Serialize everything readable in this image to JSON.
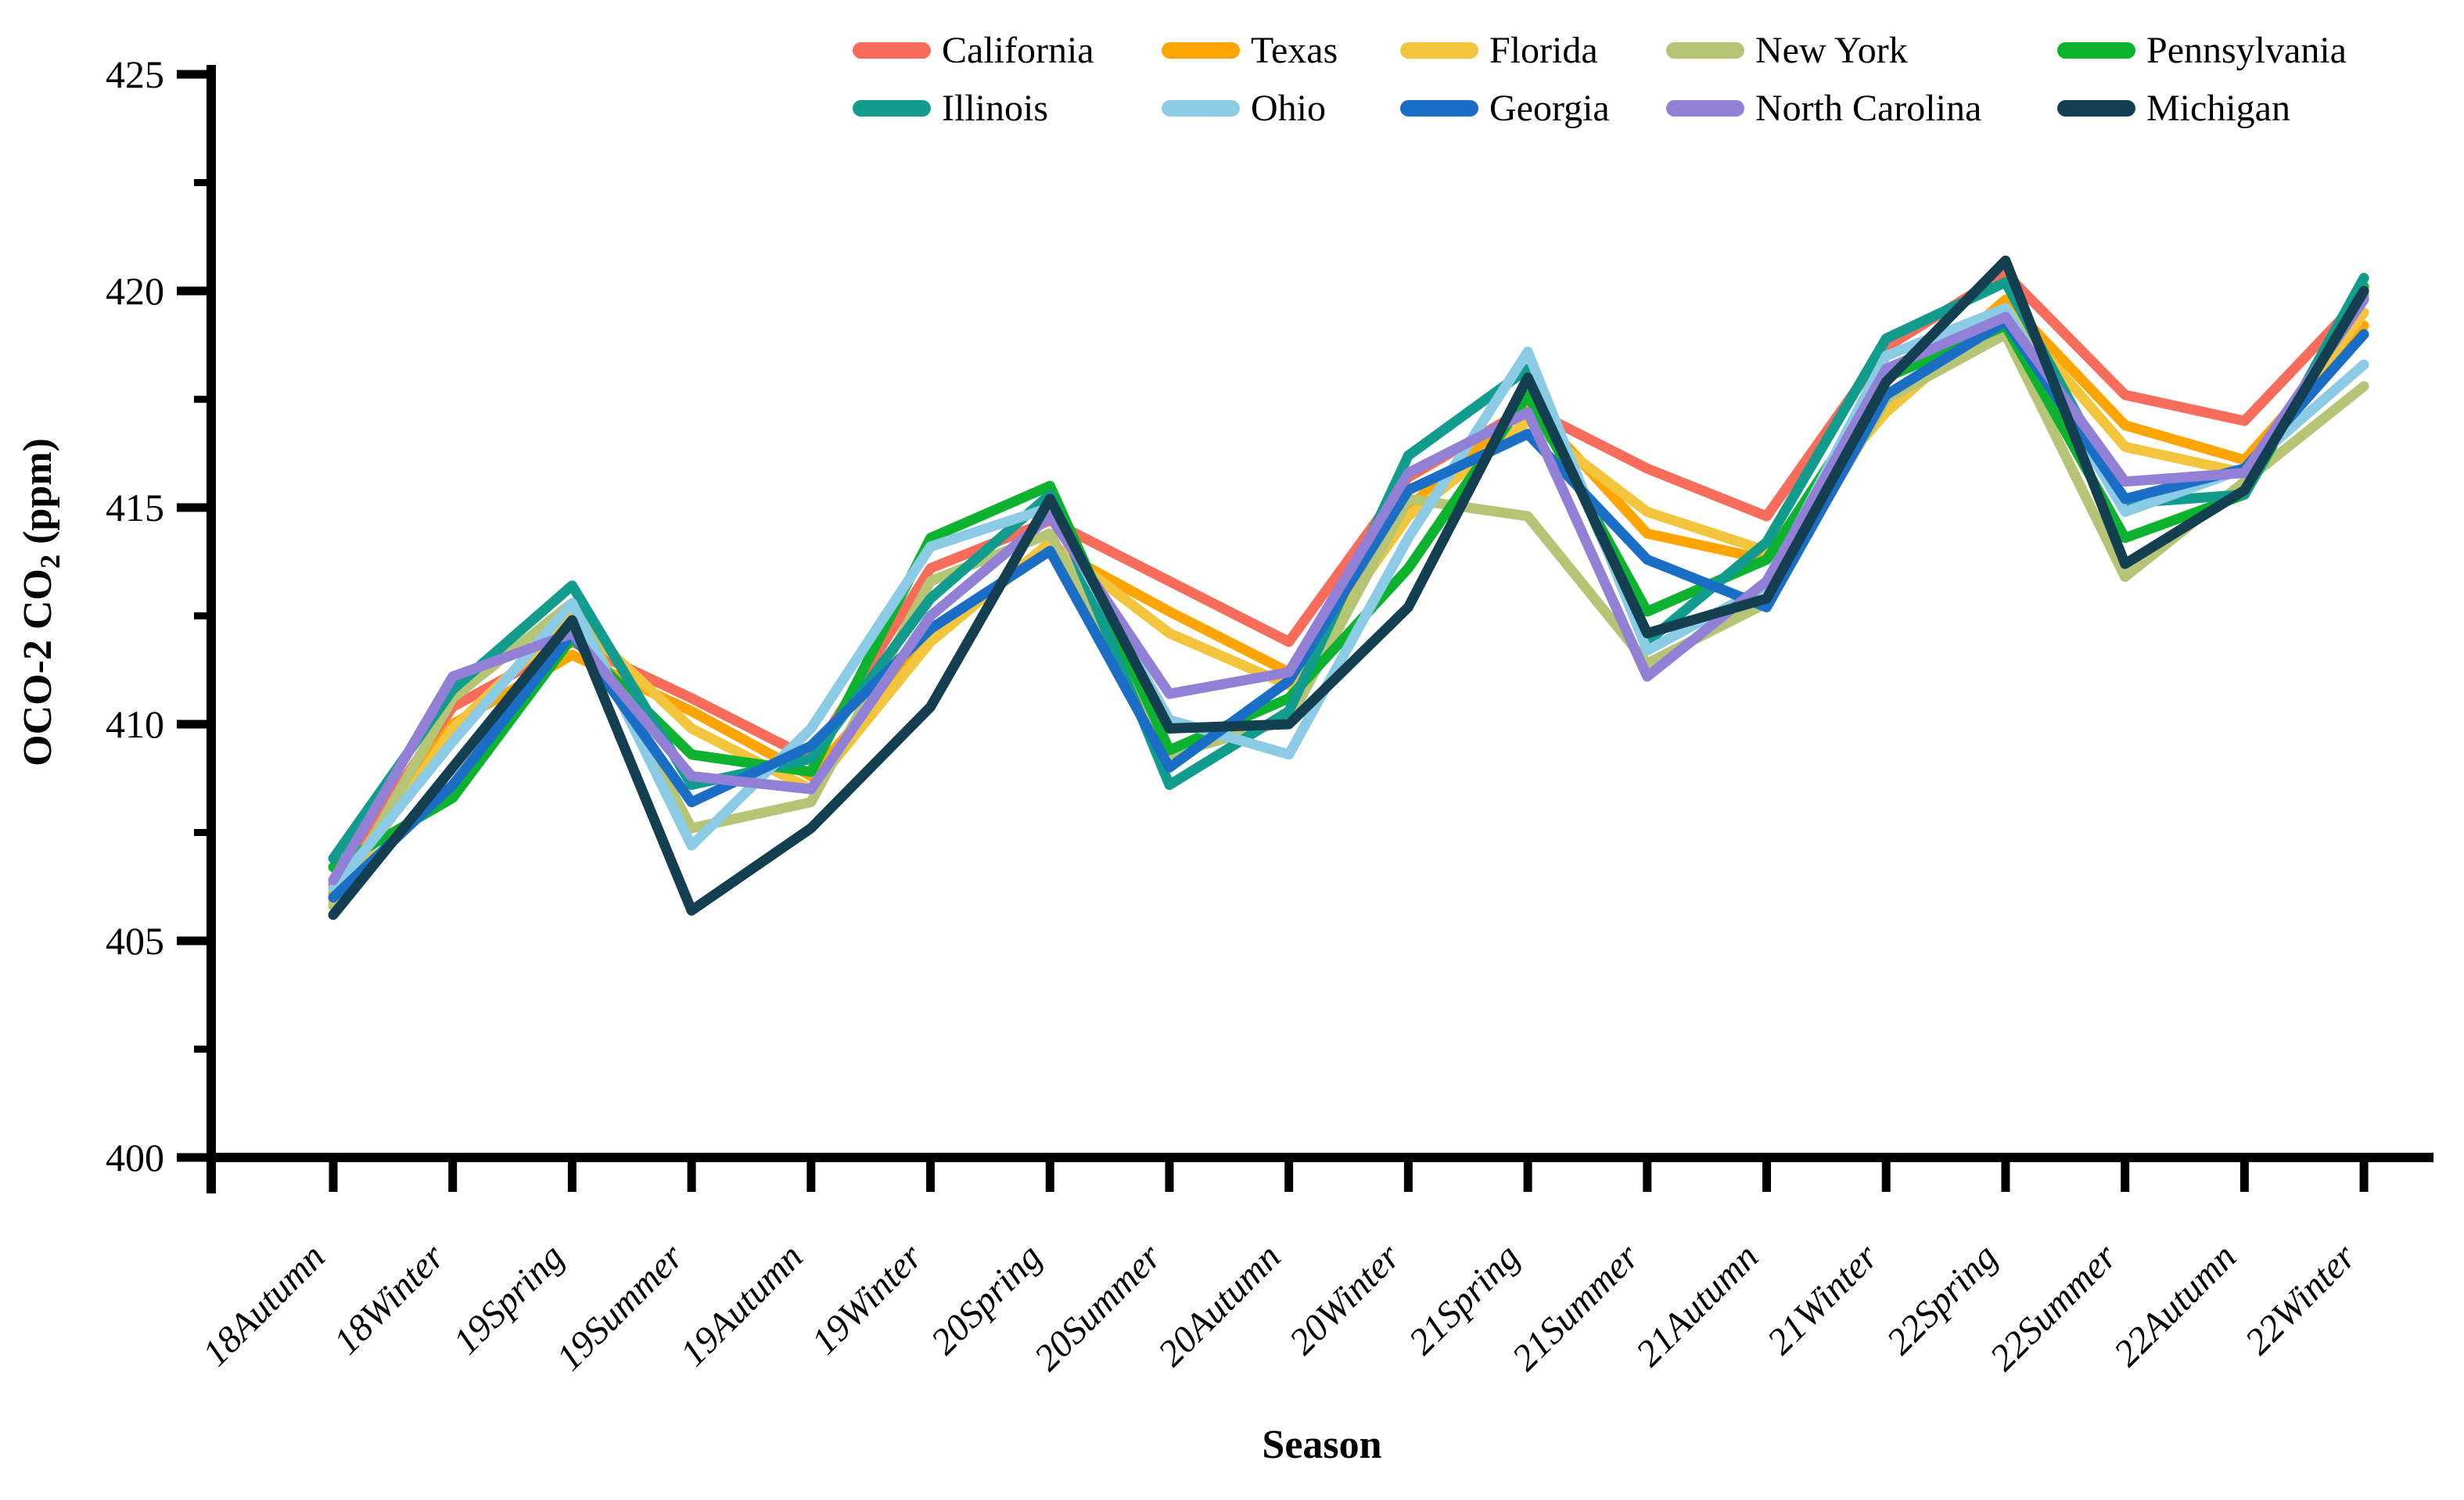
{
  "axis": {
    "ylabel_prefix": "OCO-2 CO",
    "ylabel_sub": "2",
    "ylabel_suffix": " (ppm)",
    "xlabel": "Season"
  },
  "chart_data": {
    "type": "line",
    "title": "",
    "xlabel": "Season",
    "ylabel": "OCO-2 CO2 (ppm)",
    "ylim": [
      400,
      425
    ],
    "yticks": [
      400,
      405,
      410,
      415,
      420,
      425
    ],
    "yticks_minor": [
      402.5,
      407.5,
      412.5,
      417.5,
      422.5
    ],
    "grid": false,
    "legend_position": "top",
    "legend_rows": [
      [
        "California",
        "Texas",
        "Florida",
        "New York",
        "Pennsylvania"
      ],
      [
        "Illinois",
        "Ohio",
        "Georgia",
        "North Carolina",
        "Michigan"
      ]
    ],
    "categories": [
      "18Autumn",
      "18Winter",
      "19Spring",
      "19Summer",
      "19Autumn",
      "19Winter",
      "20Spring",
      "20Summer",
      "20Autumn",
      "20Winter",
      "21Spring",
      "21Summer",
      "21Autumn",
      "21Winter",
      "22Spring",
      "22Summer",
      "22Autumn",
      "22Winter"
    ],
    "series": [
      {
        "name": "California",
        "color": "#F86C5B",
        "values": [
          406.3,
          410.4,
          411.9,
          410.6,
          409.2,
          413.6,
          414.7,
          413.3,
          411.9,
          415.7,
          417.3,
          415.9,
          414.8,
          418.7,
          420.4,
          417.6,
          417.0,
          419.9
        ]
      },
      {
        "name": "Texas",
        "color": "#FFA502",
        "values": [
          406.1,
          410.0,
          411.6,
          410.3,
          408.8,
          412.0,
          414.1,
          412.6,
          411.2,
          415.0,
          417.4,
          414.4,
          413.8,
          417.4,
          419.8,
          416.9,
          416.1,
          419.2
        ]
      },
      {
        "name": "Florida",
        "color": "#F2C53D",
        "values": [
          405.9,
          409.9,
          412.5,
          409.9,
          408.5,
          411.9,
          414.2,
          412.1,
          410.9,
          414.8,
          417.0,
          414.9,
          414.0,
          417.2,
          419.6,
          416.4,
          415.8,
          419.5
        ]
      },
      {
        "name": "New York",
        "color": "#B5C475",
        "values": [
          405.8,
          410.6,
          412.8,
          407.6,
          408.2,
          413.3,
          414.4,
          409.3,
          410.1,
          415.2,
          414.8,
          411.4,
          412.8,
          417.5,
          419.0,
          413.4,
          415.6,
          417.8
        ]
      },
      {
        "name": "Pennsylvania",
        "color": "#0DB22F",
        "values": [
          406.7,
          408.3,
          412.0,
          409.3,
          408.9,
          414.3,
          415.5,
          409.4,
          410.6,
          413.6,
          417.6,
          412.6,
          413.8,
          418.0,
          419.2,
          414.3,
          415.3,
          420.1
        ]
      },
      {
        "name": "Illinois",
        "color": "#129C8D",
        "values": [
          406.9,
          410.8,
          413.2,
          408.6,
          409.2,
          412.9,
          415.3,
          408.6,
          410.3,
          416.2,
          418.2,
          411.9,
          414.2,
          418.9,
          420.2,
          415.1,
          415.3,
          420.3
        ]
      },
      {
        "name": "Ohio",
        "color": "#8BCBE5",
        "values": [
          406.2,
          409.6,
          412.8,
          407.2,
          409.9,
          414.1,
          415.0,
          410.1,
          409.3,
          414.3,
          418.6,
          411.7,
          413.2,
          418.5,
          419.6,
          414.9,
          415.9,
          418.3
        ]
      },
      {
        "name": "Georgia",
        "color": "#1A6EC6",
        "values": [
          406.0,
          408.6,
          412.1,
          408.2,
          409.5,
          412.2,
          414.0,
          409.0,
          411.0,
          415.4,
          416.7,
          413.8,
          412.7,
          417.6,
          419.3,
          415.2,
          415.9,
          419.0
        ]
      },
      {
        "name": "North Carolina",
        "color": "#9180D6",
        "values": [
          406.4,
          411.1,
          412.1,
          408.8,
          408.5,
          412.5,
          414.8,
          410.7,
          411.2,
          415.8,
          417.2,
          411.1,
          413.3,
          418.2,
          419.4,
          415.6,
          415.8,
          419.8
        ]
      },
      {
        "name": "Michigan",
        "color": "#133F50",
        "values": [
          405.6,
          409.0,
          412.4,
          405.7,
          407.6,
          410.4,
          415.2,
          409.9,
          410.0,
          412.7,
          418.0,
          412.1,
          412.9,
          417.9,
          420.7,
          413.7,
          415.4,
          420.0
        ]
      }
    ]
  }
}
